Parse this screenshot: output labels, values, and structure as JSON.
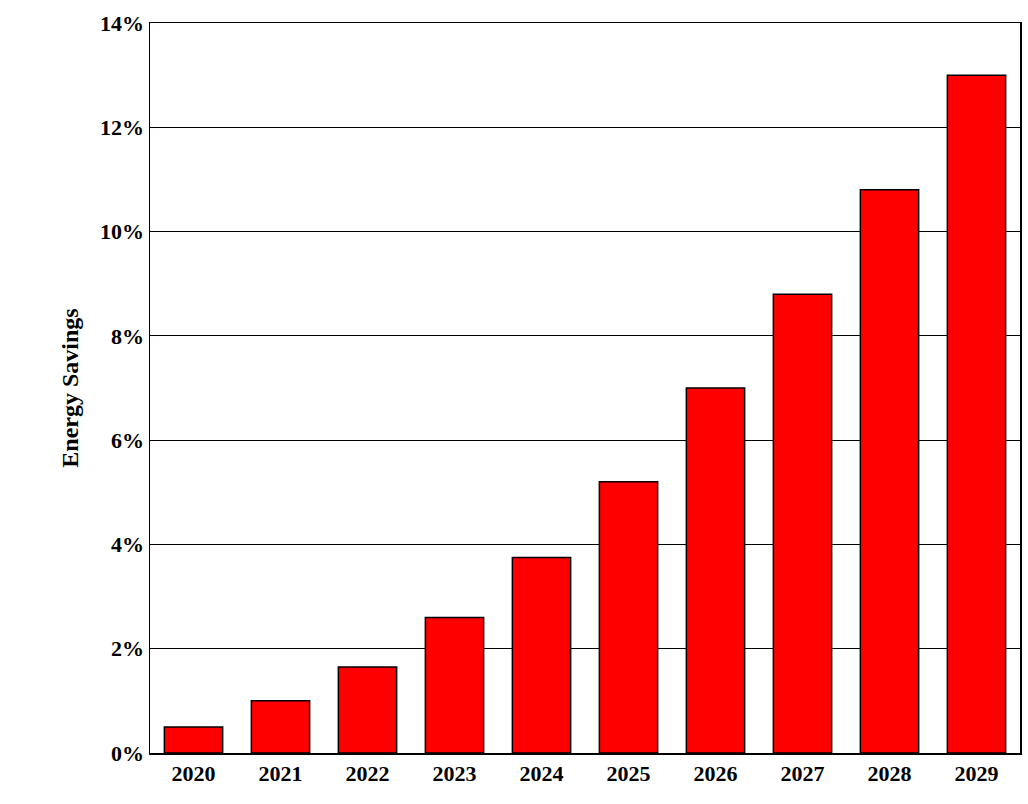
{
  "chart_data": {
    "type": "bar",
    "y_label": "Energy Savings",
    "categories": [
      "2020",
      "2021",
      "2022",
      "2023",
      "2024",
      "2025",
      "2026",
      "2027",
      "2028",
      "2029"
    ],
    "values": [
      0.5,
      1.0,
      1.65,
      2.6,
      3.75,
      5.2,
      7.0,
      8.8,
      10.8,
      13.0
    ],
    "color": "#ff0000",
    "ylim": [
      0,
      14
    ],
    "yticks": [
      {
        "value": 0,
        "label": "0%"
      },
      {
        "value": 2,
        "label": "2%"
      },
      {
        "value": 4,
        "label": "4%"
      },
      {
        "value": 6,
        "label": "6%"
      },
      {
        "value": 8,
        "label": "8%"
      },
      {
        "value": 10,
        "label": "10%"
      },
      {
        "value": 12,
        "label": "12%"
      },
      {
        "value": 14,
        "label": "14%"
      }
    ],
    "grid": true
  }
}
